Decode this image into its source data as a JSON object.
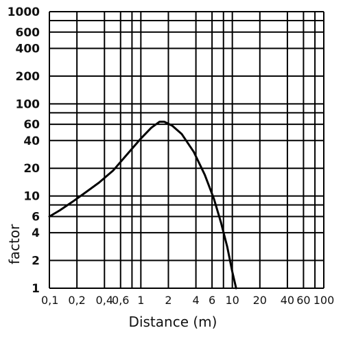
{
  "chart_data": {
    "type": "line",
    "title": "",
    "xlabel": "Distance (m)",
    "ylabel": "factor",
    "x_scale": "log",
    "y_scale": "log",
    "xlim": [
      0.1,
      100
    ],
    "ylim": [
      1,
      1000
    ],
    "grid": true,
    "x_ticks": [
      {
        "value": 0.1,
        "label": "0,1"
      },
      {
        "value": 0.2,
        "label": "0,2"
      },
      {
        "value": 0.4,
        "label": "0,4"
      },
      {
        "value": 0.6,
        "label": "0,6"
      },
      {
        "value": 1,
        "label": "1"
      },
      {
        "value": 2,
        "label": "2"
      },
      {
        "value": 4,
        "label": "4"
      },
      {
        "value": 6,
        "label": "6"
      },
      {
        "value": 10,
        "label": "10"
      },
      {
        "value": 20,
        "label": "20"
      },
      {
        "value": 40,
        "label": "40"
      },
      {
        "value": 60,
        "label": "60"
      },
      {
        "value": 100,
        "label": "100"
      }
    ],
    "y_ticks": [
      {
        "value": 1,
        "label": "1"
      },
      {
        "value": 2,
        "label": "2"
      },
      {
        "value": 4,
        "label": "4"
      },
      {
        "value": 6,
        "label": "6"
      },
      {
        "value": 10,
        "label": "10"
      },
      {
        "value": 20,
        "label": "20"
      },
      {
        "value": 40,
        "label": "40"
      },
      {
        "value": 60,
        "label": "60"
      },
      {
        "value": 100,
        "label": "100"
      },
      {
        "value": 200,
        "label": "200"
      },
      {
        "value": 400,
        "label": "400"
      },
      {
        "value": 600,
        "label": "600"
      },
      {
        "value": 1000,
        "label": "1000"
      }
    ],
    "x_grid_lines": [
      0.1,
      0.2,
      0.4,
      0.6,
      0.8,
      1,
      2,
      4,
      6,
      8,
      10,
      20,
      40,
      60,
      80,
      100
    ],
    "y_grid_lines": [
      1,
      2,
      4,
      6,
      8,
      10,
      20,
      40,
      60,
      80,
      100,
      200,
      400,
      600,
      800,
      1000
    ],
    "series": [
      {
        "color": "#000000",
        "x": [
          0.1,
          0.13,
          0.18,
          0.25,
          0.35,
          0.5,
          0.7,
          1.0,
          1.3,
          1.6,
          1.8,
          2.2,
          2.8,
          3.8,
          5.0,
          6.3,
          7.5,
          8.8,
          10.0,
          11.0
        ],
        "y": [
          6,
          7,
          8.7,
          11,
          14,
          19,
          28,
          42,
          55,
          64,
          64,
          58,
          47,
          30,
          17,
          9.3,
          5.2,
          2.8,
          1.5,
          1.0
        ]
      }
    ]
  }
}
